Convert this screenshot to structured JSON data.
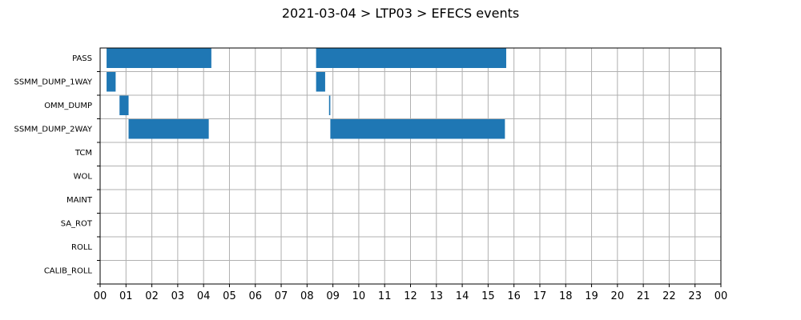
{
  "chart_data": {
    "type": "bar",
    "orientation": "horizontal",
    "title": "2021-03-04 > LTP03 > EFECS events",
    "xlabel": "",
    "ylabel": "",
    "x_unit": "hours",
    "xlim": [
      0,
      24
    ],
    "categories": [
      "PASS",
      "SSMM_DUMP_1WAY",
      "OMM_DUMP",
      "SSMM_DUMP_2WAY",
      "TCM",
      "WOL",
      "MAINT",
      "SA_ROT",
      "ROLL",
      "CALIB_ROLL"
    ],
    "x_ticks": [
      "00",
      "01",
      "02",
      "03",
      "04",
      "05",
      "06",
      "07",
      "08",
      "09",
      "10",
      "11",
      "12",
      "13",
      "14",
      "15",
      "16",
      "17",
      "18",
      "19",
      "20",
      "21",
      "22",
      "23",
      "00"
    ],
    "grid": true,
    "bar_color": "#1f77b4",
    "events": [
      {
        "category": "PASS",
        "start": 0.25,
        "end": 4.3
      },
      {
        "category": "PASS",
        "start": 8.35,
        "end": 15.7
      },
      {
        "category": "SSMM_DUMP_1WAY",
        "start": 0.25,
        "end": 0.6
      },
      {
        "category": "SSMM_DUMP_1WAY",
        "start": 8.35,
        "end": 8.7
      },
      {
        "category": "OMM_DUMP",
        "start": 0.75,
        "end": 1.1
      },
      {
        "category": "OMM_DUMP",
        "start": 8.85,
        "end": 8.9
      },
      {
        "category": "SSMM_DUMP_2WAY",
        "start": 1.1,
        "end": 4.2
      },
      {
        "category": "SSMM_DUMP_2WAY",
        "start": 8.9,
        "end": 15.65
      }
    ]
  }
}
